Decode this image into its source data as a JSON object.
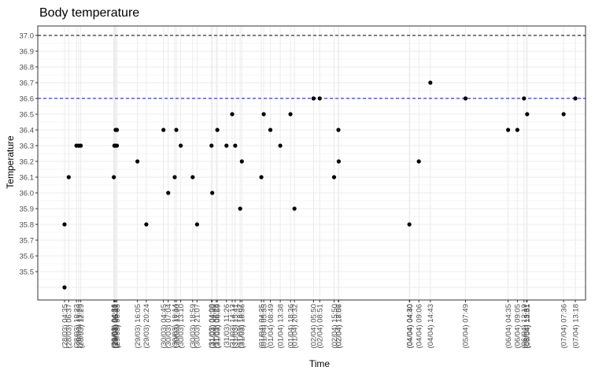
{
  "chart_data": {
    "type": "scatter",
    "title": "Body temperature",
    "xlabel": "Time",
    "ylabel": "Temperature",
    "ylim": [
      35.4,
      37.0
    ],
    "yticks": [
      35.5,
      35.6,
      35.7,
      35.8,
      35.9,
      36.0,
      36.1,
      36.2,
      36.3,
      36.4,
      36.5,
      36.6,
      36.7,
      36.8,
      36.9,
      37.0
    ],
    "grid": true,
    "reference_lines": [
      {
        "y": 37.0,
        "color": "#000000",
        "style": "dashed"
      },
      {
        "y": 36.6,
        "color": "#0000ff",
        "style": "dashed"
      }
    ],
    "colors": {
      "points": "#000000",
      "grid": "#ebebeb",
      "axis": "#333333"
    },
    "x_ticks": [
      "(28/03) 04:35",
      "(28/03) 06:37",
      "(28/03) 10:23",
      "(28/03) 11:29",
      "(28/03) 12:29",
      "(29/03) 04:36",
      "(29/03) 04:51",
      "(29/03) 05:11",
      "(29/03) 05:27",
      "(29/03) 06:05",
      "(29/03) 16:05",
      "(29/03) 20:24",
      "(30/03) 04:45",
      "(30/03) 07:04",
      "(30/03) 10:14",
      "(30/03) 11:00",
      "(30/03) 13:10",
      "(30/03) 18:59",
      "(30/03) 21:07",
      "(31/03) 04:09",
      "(31/03) 04:30",
      "(31/03) 06:28",
      "(31/03) 06:59",
      "(31/03) 11:26",
      "(31/03) 14:13",
      "(31/03) 15:41",
      "(31/03) 18:07",
      "(31/03) 18:56",
      "(01/04) 04:25",
      "(01/04) 05:35",
      "(01/04) 08:49",
      "(01/04) 13:38",
      "(01/04) 18:36",
      "(01/04) 20:32",
      "(02/04) 05:50",
      "(02/04) 08:51",
      "(02/04) 15:50",
      "(02/04) 17:57",
      "(02/04) 18:06",
      "(04/04) 04:30",
      "(04/04) 04:40",
      "(04/04) 09:06",
      "(04/04) 14:43",
      "(05/04) 07:49",
      "(06/04) 04:35",
      "(06/04) 09:05",
      "(06/04) 12:19",
      "(06/04) 13:31",
      "(06/04) 13:51",
      "(07/04) 07:36",
      "(07/04) 13:18"
    ],
    "points": [
      {
        "x": "(28/03) 04:35",
        "y": 35.8
      },
      {
        "x": "(28/03) 04:35",
        "y": 35.4
      },
      {
        "x": "(28/03) 06:37",
        "y": 36.1
      },
      {
        "x": "(28/03) 10:23",
        "y": 36.3
      },
      {
        "x": "(28/03) 11:29",
        "y": 36.3
      },
      {
        "x": "(28/03) 12:29",
        "y": 36.3
      },
      {
        "x": "(29/03) 04:36",
        "y": 36.1
      },
      {
        "x": "(29/03) 04:51",
        "y": 36.3
      },
      {
        "x": "(29/03) 05:11",
        "y": 36.3
      },
      {
        "x": "(29/03) 05:27",
        "y": 36.4
      },
      {
        "x": "(29/03) 06:05",
        "y": 36.4
      },
      {
        "x": "(29/03) 06:05",
        "y": 36.3
      },
      {
        "x": "(29/03) 16:05",
        "y": 36.2
      },
      {
        "x": "(29/03) 20:24",
        "y": 35.8
      },
      {
        "x": "(30/03) 04:45",
        "y": 36.4
      },
      {
        "x": "(30/03) 07:04",
        "y": 36.0
      },
      {
        "x": "(30/03) 10:14",
        "y": 36.1
      },
      {
        "x": "(30/03) 11:00",
        "y": 36.4
      },
      {
        "x": "(30/03) 13:10",
        "y": 36.3
      },
      {
        "x": "(30/03) 18:59",
        "y": 36.1
      },
      {
        "x": "(30/03) 21:07",
        "y": 35.8
      },
      {
        "x": "(31/03) 04:09",
        "y": 36.3
      },
      {
        "x": "(31/03) 04:30",
        "y": 36.0
      },
      {
        "x": "(31/03) 06:59",
        "y": 36.4
      },
      {
        "x": "(31/03) 11:26",
        "y": 36.3
      },
      {
        "x": "(31/03) 14:13",
        "y": 36.5
      },
      {
        "x": "(31/03) 15:41",
        "y": 36.3
      },
      {
        "x": "(31/03) 18:07",
        "y": 35.9
      },
      {
        "x": "(31/03) 18:56",
        "y": 36.2
      },
      {
        "x": "(01/04) 04:25",
        "y": 36.1
      },
      {
        "x": "(01/04) 05:35",
        "y": 36.5
      },
      {
        "x": "(01/04) 08:49",
        "y": 36.4
      },
      {
        "x": "(01/04) 13:38",
        "y": 36.3
      },
      {
        "x": "(01/04) 18:36",
        "y": 36.5
      },
      {
        "x": "(01/04) 20:32",
        "y": 35.9
      },
      {
        "x": "(02/04) 05:50",
        "y": 36.6
      },
      {
        "x": "(02/04) 08:51",
        "y": 36.6
      },
      {
        "x": "(02/04) 15:50",
        "y": 36.1
      },
      {
        "x": "(02/04) 17:57",
        "y": 36.4
      },
      {
        "x": "(02/04) 18:06",
        "y": 36.2
      },
      {
        "x": "(04/04) 04:30",
        "y": 35.8
      },
      {
        "x": "(04/04) 09:06",
        "y": 36.2
      },
      {
        "x": "(04/04) 14:43",
        "y": 36.7
      },
      {
        "x": "(05/04) 07:49",
        "y": 36.6
      },
      {
        "x": "(06/04) 04:35",
        "y": 36.4
      },
      {
        "x": "(06/04) 09:05",
        "y": 36.4
      },
      {
        "x": "(06/04) 12:19",
        "y": 36.6
      },
      {
        "x": "(06/04) 13:51",
        "y": 36.5
      },
      {
        "x": "(07/04) 07:36",
        "y": 36.5
      },
      {
        "x": "(07/04) 13:18",
        "y": 36.6
      }
    ]
  }
}
